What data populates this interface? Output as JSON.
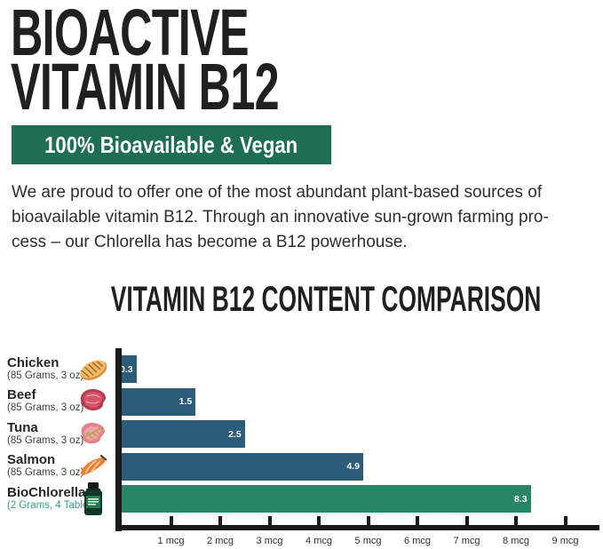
{
  "header": {
    "title_line1": "BIOACTIVE",
    "title_line2": "VITAMIN B12",
    "banner": "100% Bioavailable & Vegan"
  },
  "intro": {
    "lines": [
      "We are proud to offer one of the most abundant plant-based sources of",
      "bioavailable vitamin B12. Through an innovative sun-grown farming pro-",
      "cess – our Chlorella has become a B12 powerhouse."
    ]
  },
  "chart_data": {
    "type": "bar",
    "orientation": "horizontal",
    "title": "VITAMIN B12 CONTENT COMPARISON",
    "unit": "mcg",
    "categories": [
      "Chicken",
      "Beef",
      "Tuna",
      "Salmon",
      "BioChlorella"
    ],
    "category_subtitles": [
      "(85 Grams, 3 oz)",
      "(85 Grams, 3 oz)",
      "(85 Grams, 3 oz)",
      "(85 Grams, 3 oz)",
      "(2 Grams, 4 Tablets)"
    ],
    "values": [
      0.3,
      1.5,
      2.5,
      4.9,
      8.3
    ],
    "value_labels": [
      "0.3",
      "1.5",
      "2.5",
      "4.9",
      "8.3"
    ],
    "icons": [
      "chicken-icon",
      "beef-icon",
      "tuna-icon",
      "salmon-icon",
      "supplement-bottle-icon"
    ],
    "bar_colors": [
      "#2b5c78",
      "#2b5c78",
      "#2b5c78",
      "#2b5c78",
      "#27866a"
    ],
    "highlight_index": 4,
    "x_ticks": [
      "1 mcg",
      "2 mcg",
      "3 mcg",
      "4 mcg",
      "5 mcg",
      "6 mcg",
      "7 mcg",
      "8 mcg",
      "9 mcg"
    ],
    "xlim": [
      0,
      9.7
    ],
    "grid": false,
    "legend": "none"
  },
  "colors": {
    "banner_green": "#1e6e52",
    "bar_blue": "#2b5c78",
    "bar_green": "#27866a",
    "axis_black": "#191919",
    "highlight_teal": "#2f9e82",
    "title_black": "#1f2121",
    "body_text": "#2e2e2e",
    "value_label": "#ffffff"
  }
}
